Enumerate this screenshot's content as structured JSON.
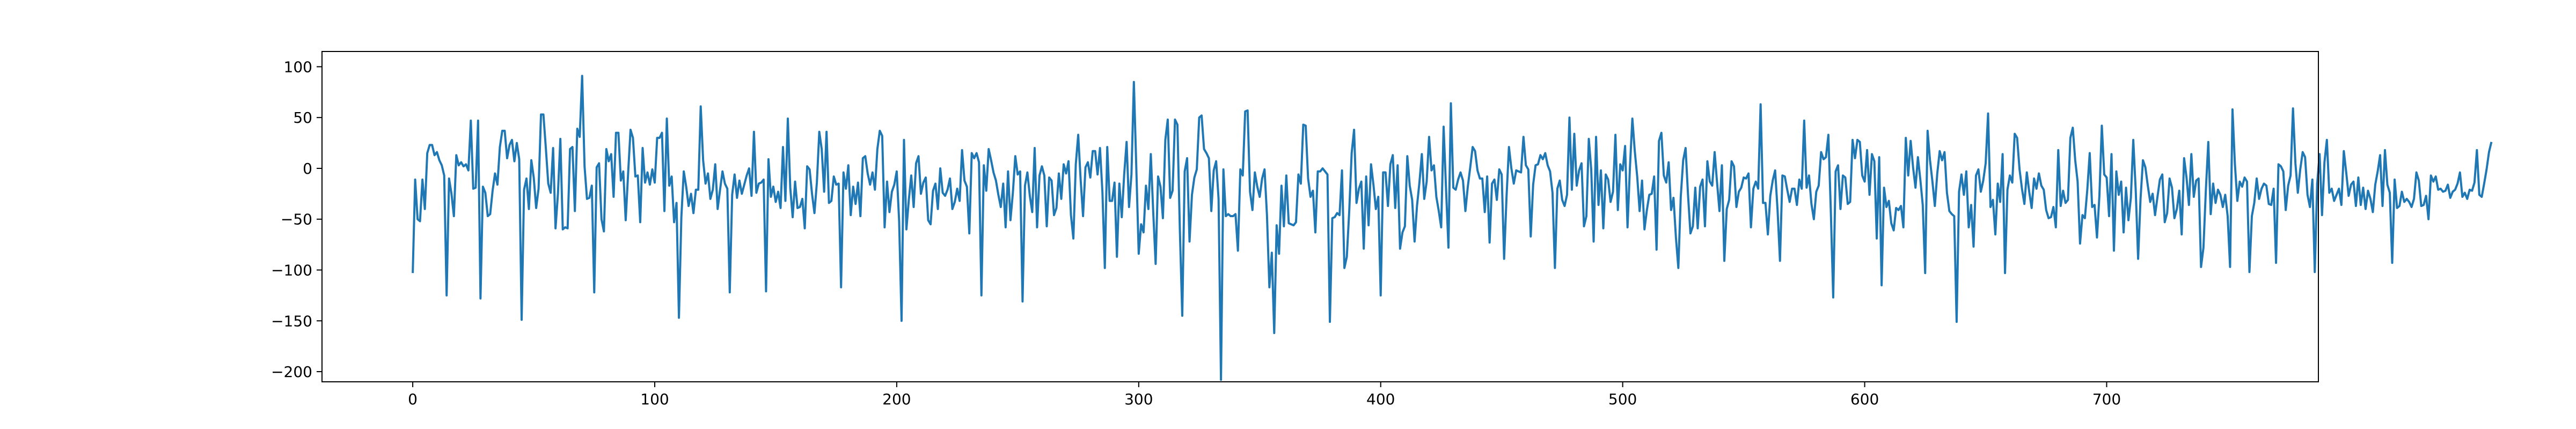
{
  "chart_data": {
    "type": "line",
    "title": "",
    "xlabel": "",
    "ylabel": "",
    "xlim": [
      -37.5,
      787.5
    ],
    "ylim": [
      -210,
      115
    ],
    "grid": false,
    "legend": "none",
    "xticks": [
      0,
      100,
      200,
      300,
      400,
      500,
      600,
      700
    ],
    "xtick_labels": [
      "0",
      "100",
      "200",
      "300",
      "400",
      "500",
      "600",
      "700"
    ],
    "yticks": [
      -200,
      -150,
      -100,
      -50,
      0,
      50,
      100
    ],
    "ytick_labels": [
      "−200",
      "−150",
      "−100",
      "−50",
      "0",
      "50",
      "100"
    ],
    "series": [
      {
        "color": "#1f77b4",
        "x_start": 0,
        "x_step": 1,
        "values": [
          -103,
          -11,
          -50,
          -52,
          -11,
          -40,
          15,
          23,
          23,
          13,
          16,
          8,
          3,
          -7,
          -125,
          -10,
          -25,
          -47,
          13,
          3,
          6,
          2,
          4,
          -2,
          47,
          -20,
          -19,
          47,
          -128,
          -18,
          -24,
          -47,
          -45,
          -22,
          -5,
          -16,
          21,
          37,
          37,
          10,
          23,
          28,
          7,
          25,
          9,
          -149,
          -21,
          -10,
          -40,
          8,
          -9,
          -39,
          -20,
          53,
          53,
          20,
          -15,
          -24,
          20,
          -59,
          -25,
          29,
          -60,
          -58,
          -59,
          19,
          21,
          -42,
          39,
          31,
          91,
          2,
          -30,
          -29,
          -17,
          -122,
          1,
          5,
          -50,
          -62,
          19,
          7,
          14,
          -28,
          35,
          35,
          -12,
          -3,
          -51,
          -5,
          38,
          30,
          -8,
          -7,
          -53,
          20,
          -14,
          -4,
          -16,
          -1,
          -14,
          30,
          30,
          35,
          -42,
          49,
          -17,
          -8,
          -53,
          -34,
          -147,
          -48,
          -3,
          -18,
          -37,
          -25,
          -44,
          -21,
          -21,
          61,
          8,
          -15,
          -5,
          -30,
          -21,
          4,
          -40,
          -21,
          -3,
          -15,
          -20,
          -122,
          -26,
          -6,
          -29,
          -12,
          -25,
          -16,
          -7,
          0,
          -27,
          36,
          -24,
          -15,
          -14,
          -11,
          -121,
          9,
          -28,
          -18,
          -33,
          -23,
          -39,
          21,
          -32,
          49,
          -19,
          -48,
          -13,
          -39,
          -38,
          -30,
          -59,
          2,
          -1,
          -25,
          -44,
          -14,
          36,
          19,
          -23,
          36,
          -34,
          -32,
          -8,
          -16,
          -15,
          -117,
          -4,
          -20,
          3,
          -46,
          -18,
          -35,
          -14,
          -47,
          10,
          12,
          -5,
          -16,
          -4,
          -21,
          19,
          37,
          32,
          -58,
          -13,
          -43,
          -23,
          -16,
          -3,
          -52,
          -150,
          28,
          -60,
          -31,
          -7,
          -38,
          5,
          12,
          -25,
          -14,
          -9,
          -51,
          -55,
          -22,
          -15,
          -40,
          0,
          -24,
          -27,
          -21,
          -10,
          -40,
          -33,
          -20,
          -32,
          18,
          -12,
          -18,
          -64,
          15,
          10,
          15,
          6,
          -125,
          3,
          -22,
          19,
          8,
          -4,
          -12,
          -26,
          -38,
          -15,
          -58,
          -3,
          -51,
          -24,
          12,
          -6,
          -3,
          -131,
          -17,
          -4,
          -27,
          -43,
          20,
          -58,
          -7,
          2,
          -7,
          -57,
          -9,
          -12,
          -46,
          -39,
          -5,
          -30,
          4,
          -5,
          7,
          -46,
          -69,
          4,
          33,
          -11,
          -47,
          1,
          6,
          -9,
          17,
          17,
          -6,
          20,
          -23,
          -98,
          21,
          -32,
          -32,
          -14,
          -87,
          -15,
          -48,
          -6,
          26,
          -38,
          -6,
          85,
          1,
          -84,
          -55,
          -63,
          -17,
          -40,
          14,
          -43,
          -94,
          -8,
          -18,
          -49,
          28,
          48,
          -29,
          -22,
          48,
          43,
          -60,
          -145,
          -3,
          10,
          -72,
          -26,
          -9,
          -1,
          50,
          52,
          19,
          15,
          10,
          -42,
          -2,
          7,
          -30,
          -208,
          -1,
          -47,
          -45,
          -47,
          -47,
          -45,
          -81,
          -1,
          -7,
          56,
          57,
          -23,
          -41,
          -4,
          -18,
          -28,
          -10,
          -1,
          -46,
          -117,
          -83,
          -162,
          -56,
          -84,
          -17,
          -57,
          -7,
          -54,
          -55,
          -56,
          -53,
          -6,
          -15,
          43,
          42,
          -10,
          -28,
          -22,
          -63,
          -3,
          -3,
          0,
          -3,
          -6,
          -151,
          -49,
          -48,
          -44,
          -46,
          -2,
          -98,
          -87,
          -42,
          15,
          38,
          -34,
          -20,
          -13,
          -79,
          -8,
          -56,
          4,
          -16,
          -40,
          -28,
          -125,
          -4,
          -4,
          -37,
          4,
          13,
          -39,
          3,
          -79,
          -63,
          -57,
          12,
          -17,
          -31,
          -72,
          -37,
          -14,
          14,
          -30,
          -13,
          31,
          -2,
          3,
          -28,
          -42,
          -58,
          41,
          -20,
          -78,
          64,
          -19,
          -21,
          -11,
          -4,
          -12,
          -42,
          -18,
          1,
          21,
          17,
          -2,
          -10,
          -10,
          -43,
          -8,
          -73,
          -15,
          -11,
          -31,
          -1,
          -6,
          -89,
          -28,
          21,
          0,
          -15,
          -2,
          -3,
          -4,
          31,
          3,
          -1,
          -67,
          -16,
          3,
          4,
          13,
          9,
          15,
          3,
          -3,
          -24,
          -98,
          -20,
          -12,
          -31,
          -37,
          -26,
          50,
          -21,
          34,
          -17,
          -2,
          5,
          -57,
          -47,
          29,
          -1,
          -72,
          31,
          -36,
          -2,
          -59,
          -6,
          -11,
          -33,
          -23,
          33,
          -41,
          4,
          -2,
          22,
          -58,
          1,
          49,
          17,
          -8,
          -42,
          -12,
          -60,
          -41,
          -26,
          -25,
          -8,
          -80,
          27,
          35,
          -7,
          -14,
          6,
          -41,
          -29,
          -68,
          -98,
          -28,
          8,
          20,
          -26,
          -64,
          -57,
          -19,
          -59,
          -18,
          -11,
          -57,
          7,
          -13,
          -17,
          16,
          -14,
          -42,
          3,
          -91,
          -40,
          -31,
          7,
          2,
          -38,
          -23,
          -19,
          -9,
          -10,
          -5,
          -58,
          -20,
          -13,
          -20,
          63,
          -34,
          -34,
          -65,
          -27,
          -12,
          -2,
          -41,
          -91,
          -7,
          -8,
          -21,
          -33,
          -20,
          -20,
          -36,
          -11,
          -20,
          47,
          -19,
          -7,
          -35,
          -50,
          -23,
          -17,
          16,
          9,
          11,
          33,
          -41,
          -127,
          -3,
          3,
          -40,
          -7,
          -9,
          -35,
          -33,
          28,
          10,
          28,
          26,
          -7,
          -13,
          18,
          -26,
          14,
          7,
          -69,
          11,
          -115,
          -19,
          -38,
          -32,
          -54,
          -61,
          -39,
          -41,
          -37,
          -58,
          30,
          -7,
          27,
          1,
          -19,
          11,
          -11,
          -36,
          -103,
          37,
          8,
          -13,
          -37,
          -5,
          17,
          8,
          16,
          -24,
          -42,
          -45,
          -47,
          -151,
          -23,
          -6,
          -26,
          -3,
          -58,
          -36,
          -77,
          -7,
          -1,
          -23,
          -12,
          5,
          54,
          -38,
          -31,
          -65,
          -15,
          -33,
          14,
          -103,
          -21,
          -7,
          -14,
          34,
          30,
          -1,
          -20,
          -35,
          -4,
          -23,
          -39,
          -10,
          -20,
          -5,
          -17,
          -21,
          -41,
          -49,
          -48,
          -38,
          -58,
          18,
          -37,
          -22,
          -34,
          -31,
          30,
          40,
          8,
          -13,
          -74,
          -46,
          -49,
          -21,
          15,
          -38,
          -36,
          -68,
          -27,
          42,
          -6,
          -9,
          -47,
          14,
          -81,
          -3,
          -26,
          -13,
          -63,
          -19,
          -51,
          -29,
          28,
          -21,
          -89,
          -30,
          8,
          1,
          -17,
          -33,
          -25,
          -46,
          -28,
          -11,
          -6,
          -53,
          -44,
          -10,
          -19,
          -49,
          -40,
          -22,
          -65,
          10,
          -9,
          -36,
          14,
          -28,
          -12,
          -10,
          -97,
          -78,
          -21,
          26,
          -45,
          -15,
          -34,
          -21,
          -26,
          -38,
          -26,
          -47,
          -97,
          58,
          4,
          -32,
          -13,
          -18,
          -9,
          -13,
          -102,
          -47,
          -34,
          -10,
          -30,
          -20,
          -15,
          -17,
          -35,
          -36,
          -20,
          -93,
          4,
          2,
          -3,
          -41,
          -17,
          -7,
          59,
          5,
          -24,
          -1,
          16,
          11,
          -26,
          -38,
          -11,
          -102,
          -15,
          14,
          -46,
          6,
          28,
          -24,
          -20,
          -32,
          -26,
          -20,
          -36,
          17,
          -4,
          -27,
          -16,
          -13,
          -37,
          -9,
          -36,
          -19,
          -40,
          -22,
          -30,
          -43,
          -16,
          -3,
          13,
          -37,
          18,
          -16,
          -24,
          -93,
          -11,
          -39,
          -37,
          -23,
          -33,
          -30,
          -33,
          -38,
          -30,
          -4,
          -12,
          -37,
          -36,
          -27,
          -50,
          -7,
          -13,
          -8,
          -21,
          -20,
          -23,
          -22,
          -16,
          -29,
          -23,
          -21,
          -15,
          -4,
          -28,
          -24,
          -30,
          -21,
          -22,
          -14,
          18,
          -26,
          -28,
          -15,
          -1,
          16,
          26
        ]
      }
    ]
  }
}
